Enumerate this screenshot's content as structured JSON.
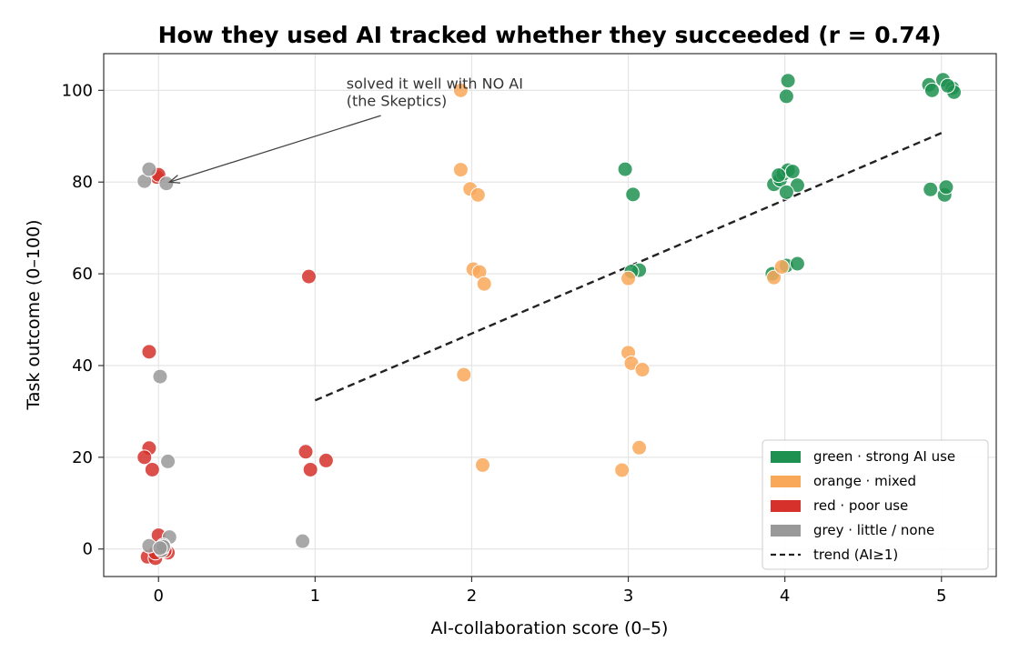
{
  "chart_data": {
    "type": "scatter",
    "title": "How they used AI tracked whether they succeeded (r = 0.74)",
    "xlabel": "AI-collaboration score (0–5)",
    "ylabel": "Task outcome (0–100)",
    "xlim": [
      -0.35,
      5.35
    ],
    "ylim": [
      -6,
      108
    ],
    "xticks": [
      "0",
      "1",
      "2",
      "3",
      "4",
      "5"
    ],
    "yticks": [
      "0",
      "20",
      "40",
      "60",
      "80",
      "100"
    ],
    "grid": true,
    "legend_position": "lower-right",
    "colors": {
      "green": "#1e9150",
      "orange": "#f9a85a",
      "red": "#d6312b",
      "grey": "#999999",
      "trend": "#222222"
    },
    "series": [
      {
        "name": "green · strong AI use",
        "color_key": "green",
        "points": [
          [
            2.98,
            82.8
          ],
          [
            3.03,
            77.3
          ],
          [
            3.07,
            60.8
          ],
          [
            3.02,
            60.5
          ],
          [
            4.02,
            102.1
          ],
          [
            4.01,
            98.7
          ],
          [
            3.93,
            79.5
          ],
          [
            3.97,
            80.5
          ],
          [
            3.99,
            81.8
          ],
          [
            4.02,
            82.6
          ],
          [
            4.05,
            82.3
          ],
          [
            4.08,
            79.3
          ],
          [
            4.01,
            77.8
          ],
          [
            3.96,
            81.5
          ],
          [
            3.92,
            60.0
          ],
          [
            4.01,
            61.8
          ],
          [
            4.08,
            62.2
          ],
          [
            4.92,
            101.2
          ],
          [
            4.94,
            100.0
          ],
          [
            5.01,
            102.3
          ],
          [
            5.07,
            100.5
          ],
          [
            5.08,
            99.6
          ],
          [
            5.04,
            101.0
          ],
          [
            4.93,
            78.4
          ],
          [
            5.02,
            77.2
          ],
          [
            5.03,
            78.9
          ]
        ]
      },
      {
        "name": "orange · mixed",
        "color_key": "orange",
        "points": [
          [
            1.93,
            100.0
          ],
          [
            1.93,
            82.7
          ],
          [
            1.99,
            78.5
          ],
          [
            2.04,
            77.2
          ],
          [
            2.01,
            61.0
          ],
          [
            2.05,
            60.4
          ],
          [
            2.08,
            57.8
          ],
          [
            1.95,
            38.0
          ],
          [
            2.07,
            18.3
          ],
          [
            3.0,
            59.0
          ],
          [
            3.0,
            42.8
          ],
          [
            3.02,
            40.5
          ],
          [
            3.09,
            39.1
          ],
          [
            3.07,
            22.1
          ],
          [
            2.96,
            17.2
          ],
          [
            3.93,
            59.2
          ],
          [
            3.98,
            61.5
          ]
        ]
      },
      {
        "name": "red · poor use",
        "color_key": "red",
        "points": [
          [
            -0.01,
            81.1
          ],
          [
            0.0,
            81.6
          ],
          [
            -0.06,
            43.0
          ],
          [
            -0.06,
            22.0
          ],
          [
            -0.09,
            20.0
          ],
          [
            -0.04,
            17.3
          ],
          [
            0.0,
            3.0
          ],
          [
            -0.07,
            -1.7
          ],
          [
            -0.02,
            -2.0
          ],
          [
            0.06,
            -0.8
          ],
          [
            0.04,
            -0.4
          ],
          [
            -0.02,
            -0.8
          ],
          [
            0.96,
            59.4
          ],
          [
            0.94,
            21.2
          ],
          [
            0.97,
            17.3
          ],
          [
            1.07,
            19.3
          ]
        ]
      },
      {
        "name": "grey · little / none",
        "color_key": "grey",
        "points": [
          [
            -0.09,
            80.2
          ],
          [
            -0.06,
            82.8
          ],
          [
            0.05,
            79.7
          ],
          [
            0.01,
            37.6
          ],
          [
            0.06,
            19.1
          ],
          [
            -0.06,
            0.7
          ],
          [
            0.07,
            2.6
          ],
          [
            0.03,
            0.8
          ],
          [
            0.02,
            -0.3
          ],
          [
            0.03,
            0.5
          ],
          [
            0.01,
            0.2
          ],
          [
            0.92,
            1.7
          ]
        ]
      }
    ],
    "trend": {
      "name": "trend (AI≥1)",
      "x": [
        1,
        5
      ],
      "y": [
        32.4,
        90.7
      ]
    },
    "annotations": [
      {
        "lines": [
          "solved it well with NO AI",
          "(the Skeptics)"
        ],
        "text_at": [
          1.2,
          100.0
        ],
        "arrow_from": [
          1.42,
          94.5
        ],
        "arrow_to": [
          0.07,
          80.0
        ]
      }
    ]
  }
}
